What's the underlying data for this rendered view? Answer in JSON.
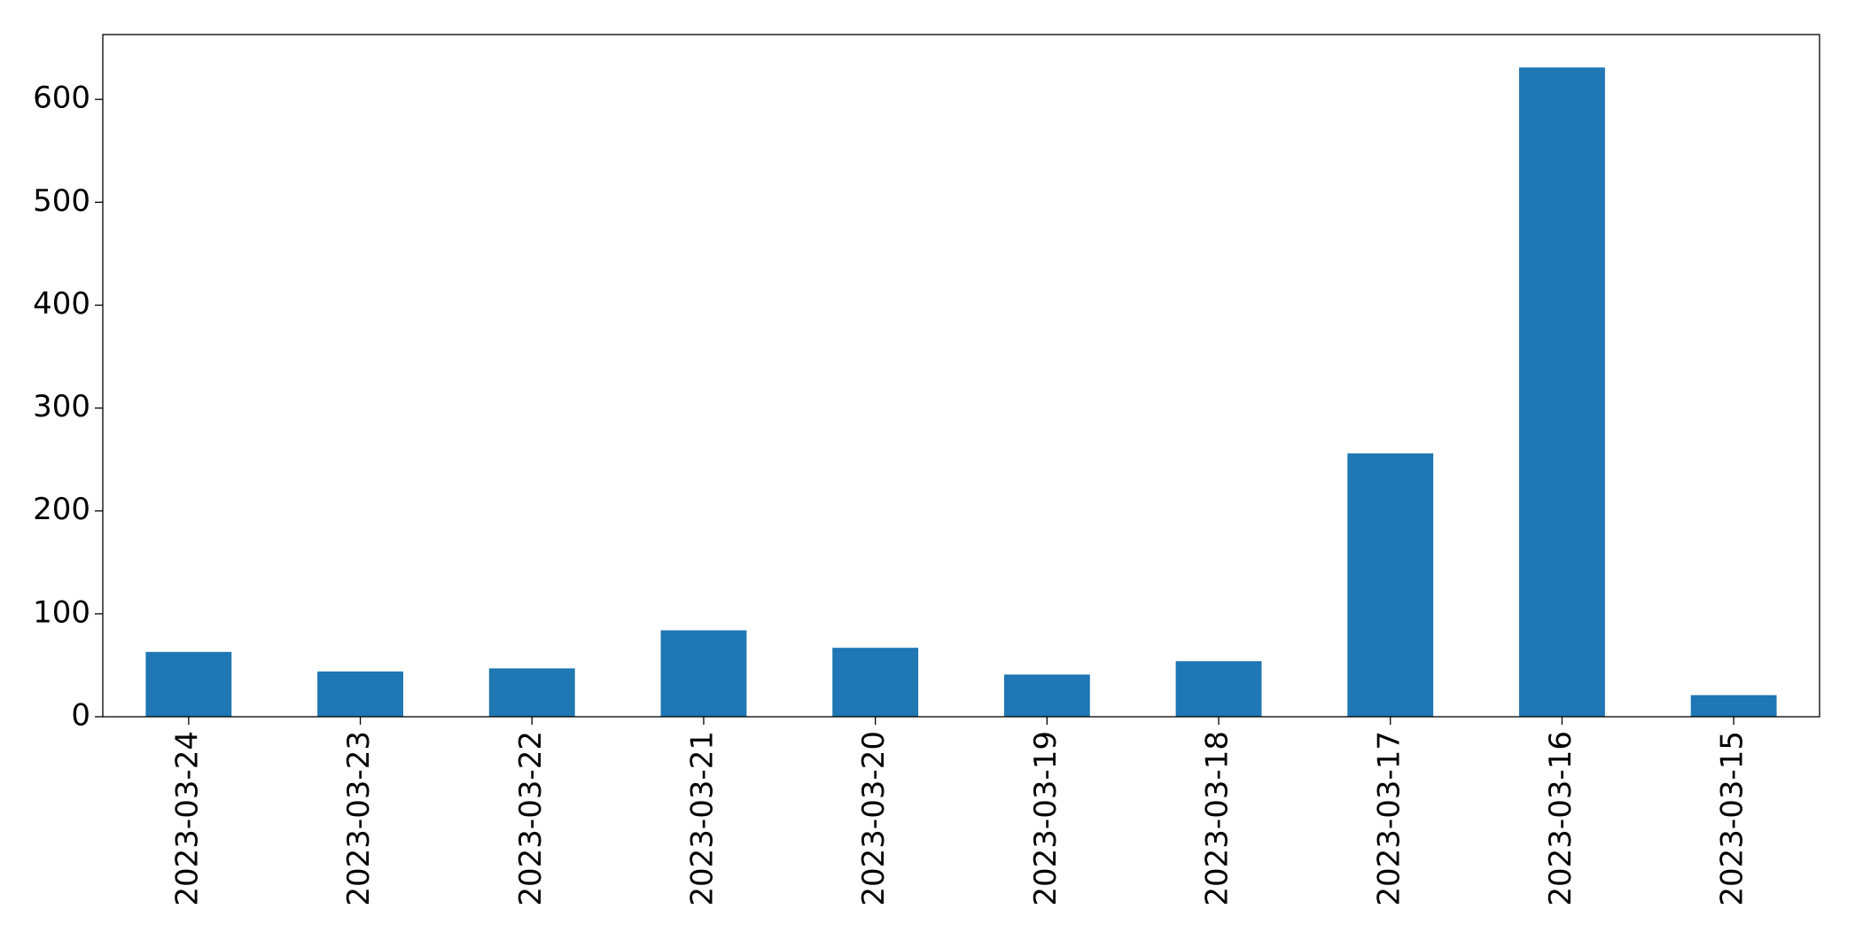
{
  "chart_data": {
    "type": "bar",
    "categories": [
      "2023-03-24",
      "2023-03-23",
      "2023-03-22",
      "2023-03-21",
      "2023-03-20",
      "2023-03-19",
      "2023-03-18",
      "2023-03-17",
      "2023-03-16",
      "2023-03-15"
    ],
    "values": [
      63,
      44,
      47,
      84,
      67,
      41,
      54,
      256,
      631,
      21
    ],
    "color": "#1f77b4",
    "ylim": [
      0,
      663
    ],
    "yticks": [
      0,
      100,
      200,
      300,
      400,
      500,
      600
    ],
    "grid": false
  }
}
